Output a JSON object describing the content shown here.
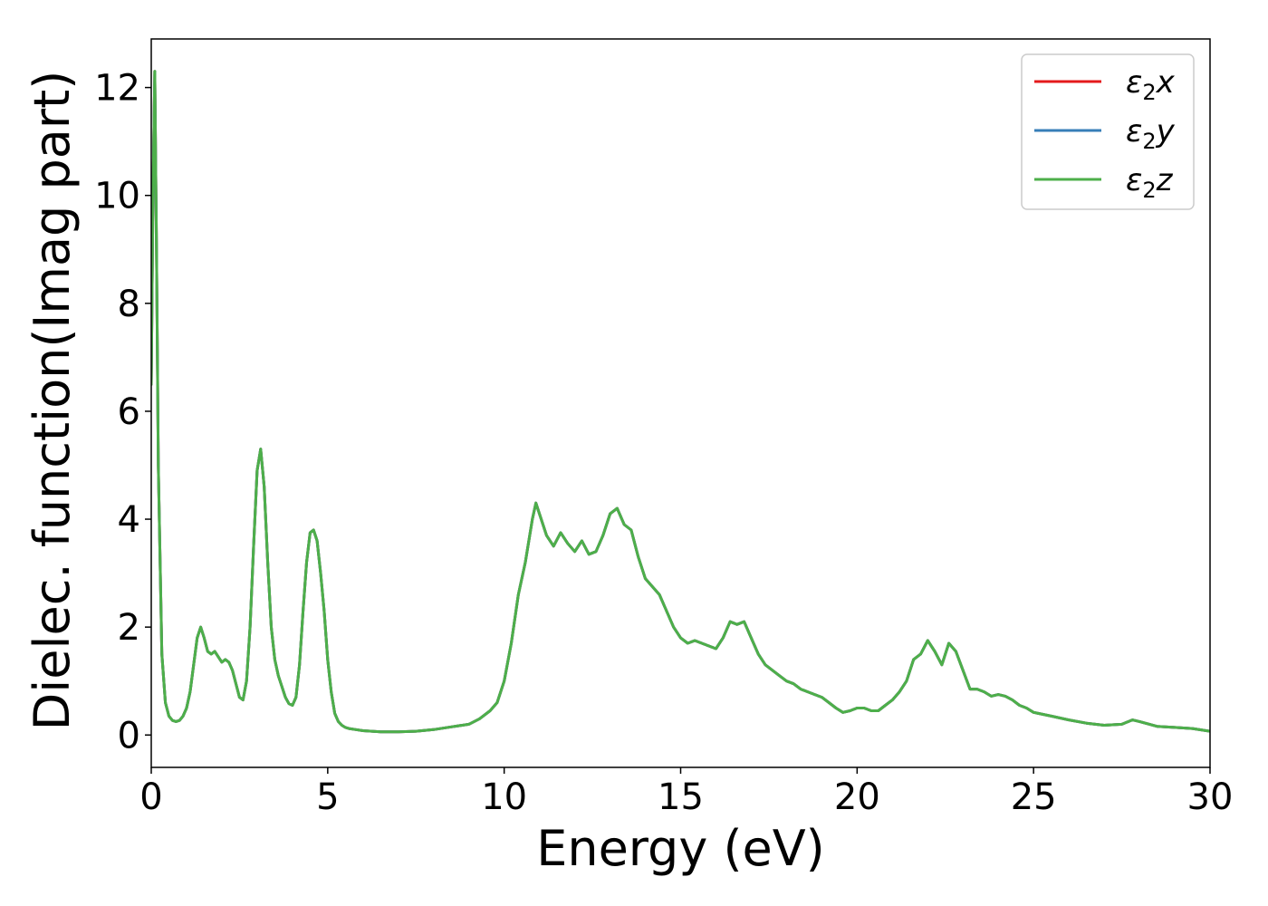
{
  "chart_data": {
    "type": "line",
    "title": "",
    "xlabel": "Energy (eV)",
    "ylabel": "Dielec. function(Imag part)",
    "xlim": [
      0,
      30
    ],
    "ylim": [
      -0.6,
      12.9
    ],
    "xticks": [
      0,
      5,
      10,
      15,
      20,
      25,
      30
    ],
    "yticks": [
      0,
      2,
      4,
      6,
      8,
      10,
      12
    ],
    "grid": false,
    "legend_position": "top-right",
    "series": [
      {
        "name": "ε2x",
        "legend": {
          "base": "ε",
          "sub": "2",
          "var": "x"
        },
        "color": "#e41a1c",
        "x": [
          0,
          0.05,
          0.1,
          0.15,
          0.2,
          0.3,
          0.4,
          0.5,
          0.6,
          0.7,
          0.8,
          0.9,
          1.0,
          1.1,
          1.2,
          1.3,
          1.4,
          1.5,
          1.6,
          1.7,
          1.8,
          1.9,
          2.0,
          2.1,
          2.2,
          2.3,
          2.4,
          2.5,
          2.6,
          2.7,
          2.8,
          2.9,
          3.0,
          3.1,
          3.2,
          3.3,
          3.4,
          3.5,
          3.6,
          3.7,
          3.8,
          3.9,
          4.0,
          4.1,
          4.2,
          4.3,
          4.4,
          4.5,
          4.6,
          4.7,
          4.8,
          4.9,
          5.0,
          5.1,
          5.2,
          5.3,
          5.4,
          5.5,
          5.6,
          5.8,
          6.0,
          6.5,
          7.0,
          7.5,
          8.0,
          8.5,
          9.0,
          9.3,
          9.6,
          9.8,
          10.0,
          10.2,
          10.4,
          10.6,
          10.8,
          10.9,
          11.0,
          11.2,
          11.4,
          11.6,
          11.8,
          12.0,
          12.2,
          12.4,
          12.6,
          12.8,
          13.0,
          13.2,
          13.4,
          13.6,
          13.8,
          14.0,
          14.2,
          14.4,
          14.6,
          14.8,
          15.0,
          15.2,
          15.4,
          15.6,
          15.8,
          16.0,
          16.2,
          16.4,
          16.6,
          16.8,
          17.0,
          17.2,
          17.4,
          17.6,
          17.8,
          18.0,
          18.2,
          18.4,
          18.6,
          18.8,
          19.0,
          19.2,
          19.4,
          19.6,
          19.8,
          20.0,
          20.2,
          20.4,
          20.6,
          20.8,
          21.0,
          21.2,
          21.4,
          21.6,
          21.8,
          22.0,
          22.2,
          22.4,
          22.6,
          22.8,
          23.0,
          23.2,
          23.4,
          23.6,
          23.8,
          24.0,
          24.2,
          24.4,
          24.6,
          24.8,
          25.0,
          25.5,
          26.0,
          26.5,
          27.0,
          27.5,
          27.8,
          28.0,
          28.5,
          29.0,
          29.5,
          30.0
        ],
        "y": [
          6.5,
          10.0,
          12.3,
          9.0,
          5.0,
          1.5,
          0.6,
          0.35,
          0.27,
          0.25,
          0.27,
          0.35,
          0.5,
          0.8,
          1.3,
          1.8,
          2.0,
          1.8,
          1.55,
          1.5,
          1.55,
          1.45,
          1.35,
          1.4,
          1.35,
          1.2,
          0.95,
          0.7,
          0.65,
          1.0,
          2.0,
          3.5,
          4.9,
          5.3,
          4.6,
          3.2,
          2.0,
          1.4,
          1.1,
          0.9,
          0.7,
          0.58,
          0.55,
          0.7,
          1.3,
          2.3,
          3.2,
          3.75,
          3.8,
          3.6,
          3.0,
          2.3,
          1.4,
          0.8,
          0.4,
          0.25,
          0.18,
          0.14,
          0.12,
          0.1,
          0.08,
          0.06,
          0.06,
          0.07,
          0.1,
          0.15,
          0.2,
          0.3,
          0.45,
          0.6,
          1.0,
          1.7,
          2.6,
          3.2,
          4.0,
          4.3,
          4.1,
          3.7,
          3.5,
          3.75,
          3.55,
          3.4,
          3.6,
          3.35,
          3.4,
          3.7,
          4.1,
          4.2,
          3.9,
          3.8,
          3.3,
          2.9,
          2.75,
          2.6,
          2.3,
          2.0,
          1.8,
          1.7,
          1.75,
          1.7,
          1.65,
          1.6,
          1.8,
          2.1,
          2.05,
          2.1,
          1.8,
          1.5,
          1.3,
          1.2,
          1.1,
          1.0,
          0.95,
          0.85,
          0.8,
          0.75,
          0.7,
          0.6,
          0.5,
          0.42,
          0.45,
          0.5,
          0.5,
          0.45,
          0.45,
          0.55,
          0.65,
          0.8,
          1.0,
          1.4,
          1.5,
          1.75,
          1.55,
          1.3,
          1.7,
          1.55,
          1.2,
          0.85,
          0.85,
          0.8,
          0.72,
          0.75,
          0.72,
          0.65,
          0.55,
          0.5,
          0.42,
          0.35,
          0.28,
          0.22,
          0.18,
          0.2,
          0.28,
          0.25,
          0.16,
          0.14,
          0.12,
          0.07
        ]
      },
      {
        "name": "ε2y",
        "legend": {
          "base": "ε",
          "sub": "2",
          "var": "y"
        },
        "color": "#377eb8",
        "x": [
          0,
          0.05,
          0.1,
          0.15,
          0.2,
          0.3,
          0.4,
          0.5,
          0.6,
          0.7,
          0.8,
          0.9,
          1.0,
          1.1,
          1.2,
          1.3,
          1.4,
          1.5,
          1.6,
          1.7,
          1.8,
          1.9,
          2.0,
          2.1,
          2.2,
          2.3,
          2.4,
          2.5,
          2.6,
          2.7,
          2.8,
          2.9,
          3.0,
          3.1,
          3.2,
          3.3,
          3.4,
          3.5,
          3.6,
          3.7,
          3.8,
          3.9,
          4.0,
          4.1,
          4.2,
          4.3,
          4.4,
          4.5,
          4.6,
          4.7,
          4.8,
          4.9,
          5.0,
          5.1,
          5.2,
          5.3,
          5.4,
          5.5,
          5.6,
          5.8,
          6.0,
          6.5,
          7.0,
          7.5,
          8.0,
          8.5,
          9.0,
          9.3,
          9.6,
          9.8,
          10.0,
          10.2,
          10.4,
          10.6,
          10.8,
          10.9,
          11.0,
          11.2,
          11.4,
          11.6,
          11.8,
          12.0,
          12.2,
          12.4,
          12.6,
          12.8,
          13.0,
          13.2,
          13.4,
          13.6,
          13.8,
          14.0,
          14.2,
          14.4,
          14.6,
          14.8,
          15.0,
          15.2,
          15.4,
          15.6,
          15.8,
          16.0,
          16.2,
          16.4,
          16.6,
          16.8,
          17.0,
          17.2,
          17.4,
          17.6,
          17.8,
          18.0,
          18.2,
          18.4,
          18.6,
          18.8,
          19.0,
          19.2,
          19.4,
          19.6,
          19.8,
          20.0,
          20.2,
          20.4,
          20.6,
          20.8,
          21.0,
          21.2,
          21.4,
          21.6,
          21.8,
          22.0,
          22.2,
          22.4,
          22.6,
          22.8,
          23.0,
          23.2,
          23.4,
          23.6,
          23.8,
          24.0,
          24.2,
          24.4,
          24.6,
          24.8,
          25.0,
          25.5,
          26.0,
          26.5,
          27.0,
          27.5,
          27.8,
          28.0,
          28.5,
          29.0,
          29.5,
          30.0
        ],
        "y": [
          6.5,
          10.0,
          12.3,
          9.0,
          5.0,
          1.5,
          0.6,
          0.35,
          0.27,
          0.25,
          0.27,
          0.35,
          0.5,
          0.8,
          1.3,
          1.8,
          2.0,
          1.8,
          1.55,
          1.5,
          1.55,
          1.45,
          1.35,
          1.4,
          1.35,
          1.2,
          0.95,
          0.7,
          0.65,
          1.0,
          2.0,
          3.5,
          4.9,
          5.3,
          4.6,
          3.2,
          2.0,
          1.4,
          1.1,
          0.9,
          0.7,
          0.58,
          0.55,
          0.7,
          1.3,
          2.3,
          3.2,
          3.75,
          3.8,
          3.6,
          3.0,
          2.3,
          1.4,
          0.8,
          0.4,
          0.25,
          0.18,
          0.14,
          0.12,
          0.1,
          0.08,
          0.06,
          0.06,
          0.07,
          0.1,
          0.15,
          0.2,
          0.3,
          0.45,
          0.6,
          1.0,
          1.7,
          2.6,
          3.2,
          4.0,
          4.3,
          4.1,
          3.7,
          3.5,
          3.75,
          3.55,
          3.4,
          3.6,
          3.35,
          3.4,
          3.7,
          4.1,
          4.2,
          3.9,
          3.8,
          3.3,
          2.9,
          2.75,
          2.6,
          2.3,
          2.0,
          1.8,
          1.7,
          1.75,
          1.7,
          1.65,
          1.6,
          1.8,
          2.1,
          2.05,
          2.1,
          1.8,
          1.5,
          1.3,
          1.2,
          1.1,
          1.0,
          0.95,
          0.85,
          0.8,
          0.75,
          0.7,
          0.6,
          0.5,
          0.42,
          0.45,
          0.5,
          0.5,
          0.45,
          0.45,
          0.55,
          0.65,
          0.8,
          1.0,
          1.4,
          1.5,
          1.75,
          1.55,
          1.3,
          1.7,
          1.55,
          1.2,
          0.85,
          0.85,
          0.8,
          0.72,
          0.75,
          0.72,
          0.65,
          0.55,
          0.5,
          0.42,
          0.35,
          0.28,
          0.22,
          0.18,
          0.2,
          0.28,
          0.25,
          0.16,
          0.14,
          0.12,
          0.07
        ]
      },
      {
        "name": "ε2z",
        "legend": {
          "base": "ε",
          "sub": "2",
          "var": "z"
        },
        "color": "#4daf4a",
        "x": [
          0,
          0.05,
          0.1,
          0.15,
          0.2,
          0.3,
          0.4,
          0.5,
          0.6,
          0.7,
          0.8,
          0.9,
          1.0,
          1.1,
          1.2,
          1.3,
          1.4,
          1.5,
          1.6,
          1.7,
          1.8,
          1.9,
          2.0,
          2.1,
          2.2,
          2.3,
          2.4,
          2.5,
          2.6,
          2.7,
          2.8,
          2.9,
          3.0,
          3.1,
          3.2,
          3.3,
          3.4,
          3.5,
          3.6,
          3.7,
          3.8,
          3.9,
          4.0,
          4.1,
          4.2,
          4.3,
          4.4,
          4.5,
          4.6,
          4.7,
          4.8,
          4.9,
          5.0,
          5.1,
          5.2,
          5.3,
          5.4,
          5.5,
          5.6,
          5.8,
          6.0,
          6.5,
          7.0,
          7.5,
          8.0,
          8.5,
          9.0,
          9.3,
          9.6,
          9.8,
          10.0,
          10.2,
          10.4,
          10.6,
          10.8,
          10.9,
          11.0,
          11.2,
          11.4,
          11.6,
          11.8,
          12.0,
          12.2,
          12.4,
          12.6,
          12.8,
          13.0,
          13.2,
          13.4,
          13.6,
          13.8,
          14.0,
          14.2,
          14.4,
          14.6,
          14.8,
          15.0,
          15.2,
          15.4,
          15.6,
          15.8,
          16.0,
          16.2,
          16.4,
          16.6,
          16.8,
          17.0,
          17.2,
          17.4,
          17.6,
          17.8,
          18.0,
          18.2,
          18.4,
          18.6,
          18.8,
          19.0,
          19.2,
          19.4,
          19.6,
          19.8,
          20.0,
          20.2,
          20.4,
          20.6,
          20.8,
          21.0,
          21.2,
          21.4,
          21.6,
          21.8,
          22.0,
          22.2,
          22.4,
          22.6,
          22.8,
          23.0,
          23.2,
          23.4,
          23.6,
          23.8,
          24.0,
          24.2,
          24.4,
          24.6,
          24.8,
          25.0,
          25.5,
          26.0,
          26.5,
          27.0,
          27.5,
          27.8,
          28.0,
          28.5,
          29.0,
          29.5,
          30.0
        ],
        "y": [
          6.5,
          10.0,
          12.3,
          9.0,
          5.0,
          1.5,
          0.6,
          0.35,
          0.27,
          0.25,
          0.27,
          0.35,
          0.5,
          0.8,
          1.3,
          1.8,
          2.0,
          1.8,
          1.55,
          1.5,
          1.55,
          1.45,
          1.35,
          1.4,
          1.35,
          1.2,
          0.95,
          0.7,
          0.65,
          1.0,
          2.0,
          3.5,
          4.9,
          5.3,
          4.6,
          3.2,
          2.0,
          1.4,
          1.1,
          0.9,
          0.7,
          0.58,
          0.55,
          0.7,
          1.3,
          2.3,
          3.2,
          3.75,
          3.8,
          3.6,
          3.0,
          2.3,
          1.4,
          0.8,
          0.4,
          0.25,
          0.18,
          0.14,
          0.12,
          0.1,
          0.08,
          0.06,
          0.06,
          0.07,
          0.1,
          0.15,
          0.2,
          0.3,
          0.45,
          0.6,
          1.0,
          1.7,
          2.6,
          3.2,
          4.0,
          4.3,
          4.1,
          3.7,
          3.5,
          3.75,
          3.55,
          3.4,
          3.6,
          3.35,
          3.4,
          3.7,
          4.1,
          4.2,
          3.9,
          3.8,
          3.3,
          2.9,
          2.75,
          2.6,
          2.3,
          2.0,
          1.8,
          1.7,
          1.75,
          1.7,
          1.65,
          1.6,
          1.8,
          2.1,
          2.05,
          2.1,
          1.8,
          1.5,
          1.3,
          1.2,
          1.1,
          1.0,
          0.95,
          0.85,
          0.8,
          0.75,
          0.7,
          0.6,
          0.5,
          0.42,
          0.45,
          0.5,
          0.5,
          0.45,
          0.45,
          0.55,
          0.65,
          0.8,
          1.0,
          1.4,
          1.5,
          1.75,
          1.55,
          1.3,
          1.7,
          1.55,
          1.2,
          0.85,
          0.85,
          0.8,
          0.72,
          0.75,
          0.72,
          0.65,
          0.55,
          0.5,
          0.42,
          0.35,
          0.28,
          0.22,
          0.18,
          0.2,
          0.28,
          0.25,
          0.16,
          0.14,
          0.12,
          0.07
        ]
      }
    ]
  }
}
